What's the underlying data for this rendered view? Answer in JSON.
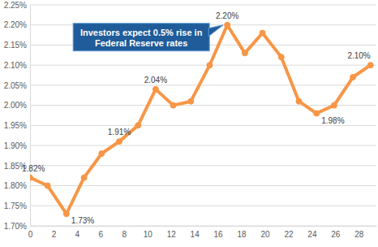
{
  "chart_data": {
    "type": "line",
    "color": "#f79646",
    "marker": "circle",
    "grid": true,
    "x": [
      0,
      1.5,
      3.1,
      4.6,
      6.1,
      7.6,
      9.2,
      10.7,
      12.2,
      13.7,
      15.3,
      16.8,
      18.3,
      19.8,
      21.4,
      22.9,
      24.4,
      25.9,
      27.5,
      29.0
    ],
    "values": [
      1.82,
      1.8,
      1.73,
      1.82,
      1.88,
      1.91,
      1.95,
      2.04,
      2.0,
      2.01,
      2.1,
      2.2,
      2.13,
      2.18,
      2.12,
      2.01,
      1.98,
      2.0,
      2.07,
      2.1
    ],
    "value_labels": [
      "1.82%",
      null,
      "1.73%",
      null,
      null,
      "1.91%",
      null,
      "2.04%",
      null,
      null,
      null,
      "2.20%",
      null,
      null,
      null,
      null,
      "1.98%",
      null,
      null,
      "2.10%"
    ],
    "xlim": [
      0,
      29.5
    ],
    "xticks": [
      0,
      2,
      4,
      6,
      8,
      10,
      12,
      14,
      16,
      18,
      20,
      22,
      24,
      26,
      28
    ],
    "ylim": [
      1.7,
      2.25
    ],
    "yticks": [
      {
        "value": 1.7,
        "label": "1.70%"
      },
      {
        "value": 1.75,
        "label": "1.75%"
      },
      {
        "value": 1.8,
        "label": "1.80%"
      },
      {
        "value": 1.85,
        "label": "1.85%"
      },
      {
        "value": 1.9,
        "label": "1.90%"
      },
      {
        "value": 1.95,
        "label": "1.95%"
      },
      {
        "value": 2.0,
        "label": "2.00%"
      },
      {
        "value": 2.05,
        "label": "2.05%"
      },
      {
        "value": 2.1,
        "label": "2.10%"
      },
      {
        "value": 2.15,
        "label": "2.15%"
      },
      {
        "value": 2.2,
        "label": "2.20%"
      },
      {
        "value": 2.25,
        "label": "2.25%"
      }
    ],
    "annotations": [
      {
        "text": "Investors expect 0.5% rise in Federal Reserve rates",
        "x": 16.8,
        "y": 2.2
      }
    ]
  }
}
